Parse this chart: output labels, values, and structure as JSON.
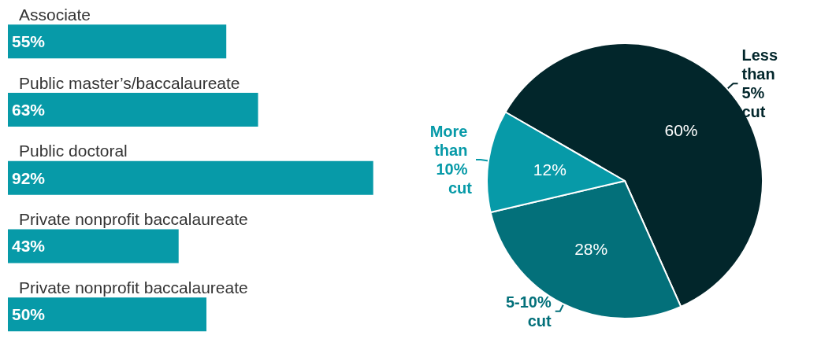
{
  "chart_data": [
    {
      "type": "bar",
      "orientation": "horizontal",
      "categories": [
        "Associate",
        "Public master’s/baccalaureate",
        "Public doctoral",
        "Private nonprofit baccalaureate",
        "Private nonprofit baccalaureate"
      ],
      "values": [
        55,
        63,
        92,
        43,
        50
      ],
      "color": "#079aa8",
      "value_labels": [
        "55%",
        "63%",
        "92%",
        "43%",
        "50%"
      ],
      "tick_labels": "y"
    },
    {
      "type": "pie",
      "categories": [
        "Less than 5% cut",
        "5-10% cut",
        "More than 10% cut"
      ],
      "values": [
        60,
        28,
        12
      ],
      "colors": [
        "#02262b",
        "#03707a",
        "#079aa8"
      ],
      "value_labels": [
        "60%",
        "28%",
        "12%"
      ]
    }
  ]
}
